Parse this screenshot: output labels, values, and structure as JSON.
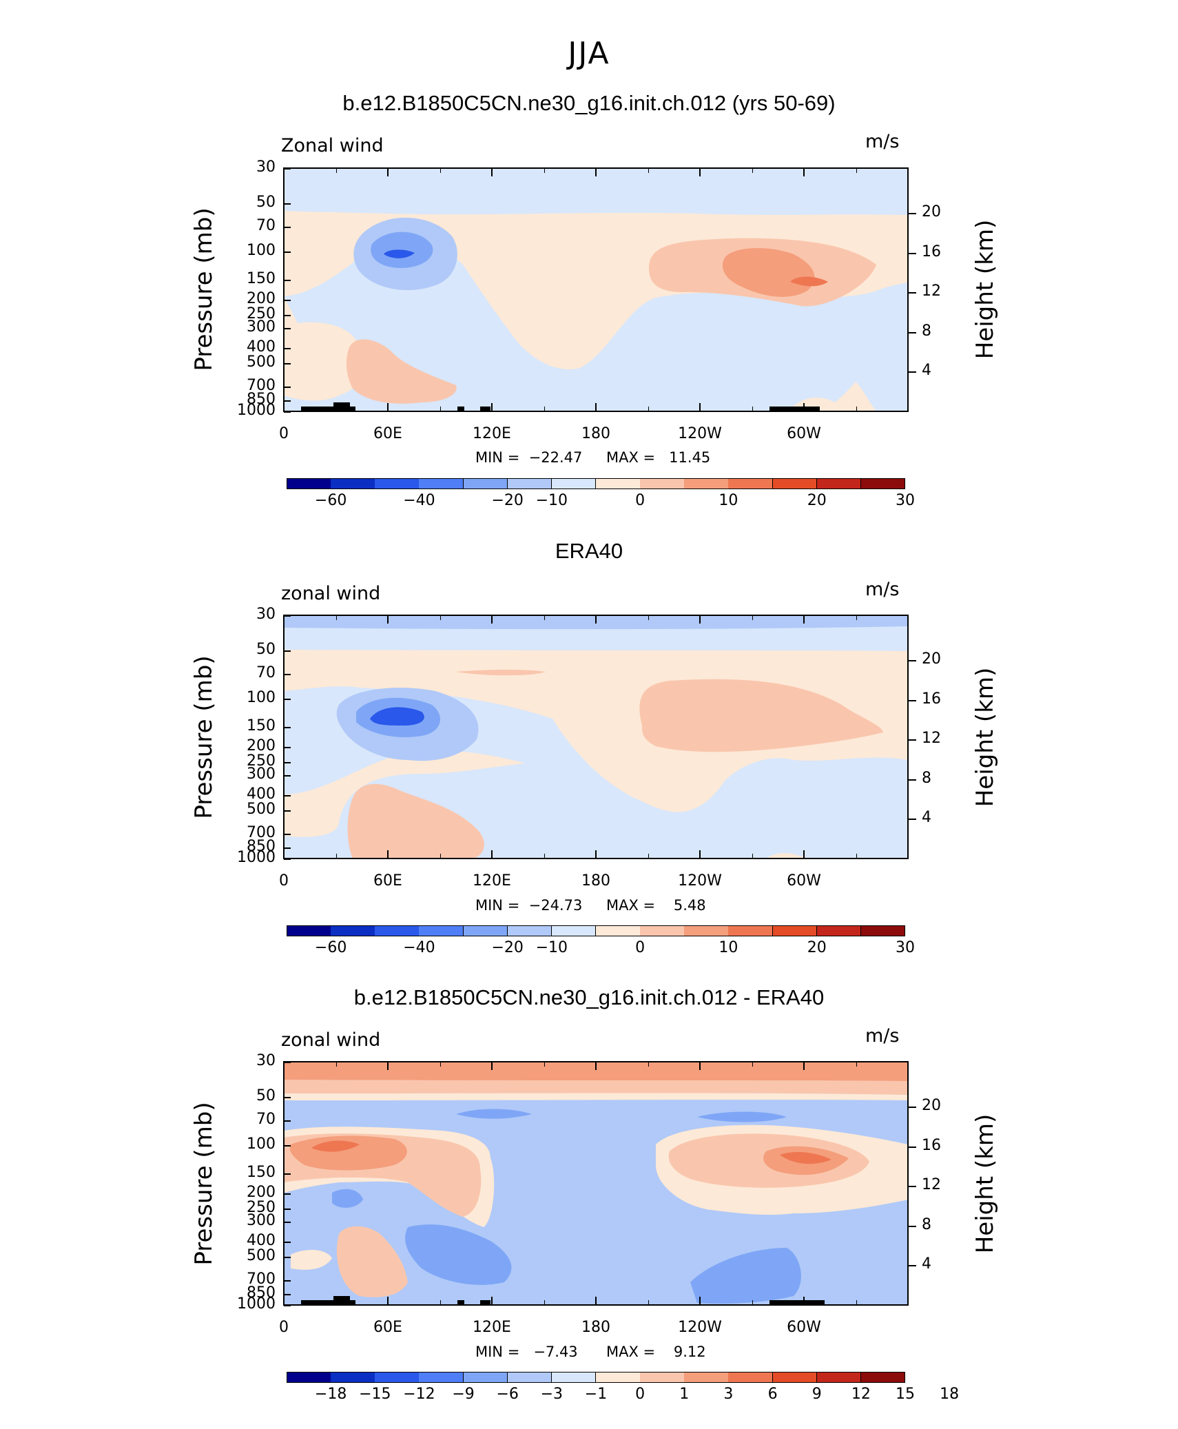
{
  "suptitle": "JJA",
  "chart_data": [
    {
      "type": "heatmap",
      "title": "b.e12.B1850C5CN.ne30_g16.init.ch.012 (yrs 50-69)",
      "left_label": "Zonal wind",
      "units": "m/s",
      "ylabel": "Pressure (mb)",
      "y2label": "Height (km)",
      "x_ticks": [
        "0",
        "60E",
        "120E",
        "180",
        "120W",
        "60W"
      ],
      "y_ticks": [
        "30",
        "50",
        "70",
        "100",
        "150",
        "200",
        "250",
        "300",
        "400",
        "500",
        "700",
        "850",
        "1000"
      ],
      "y2_ticks": [
        "20",
        "16",
        "12",
        "8",
        "4"
      ],
      "min_text": "MIN =  −22.47",
      "max_text": "MAX =   11.45",
      "min": -22.47,
      "max": 11.45,
      "colorbar_labels": [
        "−60",
        "−40",
        "−20",
        "−10",
        "0",
        "10",
        "20",
        "30"
      ],
      "colors": [
        "#00008c",
        "#0a2fc2",
        "#2a58ea",
        "#4f7ef6",
        "#7fa6f6",
        "#b0c9f8",
        "#d8e7fb",
        "#fde9d7",
        "#f9c6ad",
        "#f49e7c",
        "#ee7752",
        "#e34c26",
        "#c3261a",
        "#8c0b0b"
      ]
    },
    {
      "type": "heatmap",
      "title": "ERA40",
      "left_label": "zonal wind",
      "units": "m/s",
      "ylabel": "Pressure (mb)",
      "y2label": "Height (km)",
      "x_ticks": [
        "0",
        "60E",
        "120E",
        "180",
        "120W",
        "60W"
      ],
      "y_ticks": [
        "30",
        "50",
        "70",
        "100",
        "150",
        "200",
        "250",
        "300",
        "400",
        "500",
        "700",
        "850",
        "1000"
      ],
      "y2_ticks": [
        "20",
        "16",
        "12",
        "8",
        "4"
      ],
      "min_text": "MIN =  −24.73",
      "max_text": "MAX =    5.48",
      "min": -24.73,
      "max": 5.48,
      "colorbar_labels": [
        "−60",
        "−40",
        "−20",
        "−10",
        "0",
        "10",
        "20",
        "30"
      ],
      "colors": [
        "#00008c",
        "#0a2fc2",
        "#2a58ea",
        "#4f7ef6",
        "#7fa6f6",
        "#b0c9f8",
        "#d8e7fb",
        "#fde9d7",
        "#f9c6ad",
        "#f49e7c",
        "#ee7752",
        "#e34c26",
        "#c3261a",
        "#8c0b0b"
      ]
    },
    {
      "type": "heatmap",
      "title": "b.e12.B1850C5CN.ne30_g16.init.ch.012 - ERA40",
      "left_label": "zonal wind",
      "units": "m/s",
      "ylabel": "Pressure (mb)",
      "y2label": "Height (km)",
      "x_ticks": [
        "0",
        "60E",
        "120E",
        "180",
        "120W",
        "60W"
      ],
      "y_ticks": [
        "30",
        "50",
        "70",
        "100",
        "150",
        "200",
        "250",
        "300",
        "400",
        "500",
        "700",
        "850",
        "1000"
      ],
      "y2_ticks": [
        "20",
        "16",
        "12",
        "8",
        "4"
      ],
      "min_text": "MIN =   −7.43",
      "max_text": "MAX =    9.12",
      "min": -7.43,
      "max": 9.12,
      "colorbar_labels": [
        "−18",
        "−15",
        "−12",
        "−9",
        "−6",
        "−3",
        "−1",
        "0",
        "1",
        "3",
        "6",
        "9",
        "12",
        "15",
        "18"
      ],
      "colors": [
        "#00008c",
        "#0a2fc2",
        "#2a58ea",
        "#4f7ef6",
        "#7fa6f6",
        "#b0c9f8",
        "#d8e7fb",
        "#fde9d7",
        "#f9c6ad",
        "#f49e7c",
        "#ee7752",
        "#e34c26",
        "#c3261a",
        "#8c0b0b"
      ]
    }
  ]
}
